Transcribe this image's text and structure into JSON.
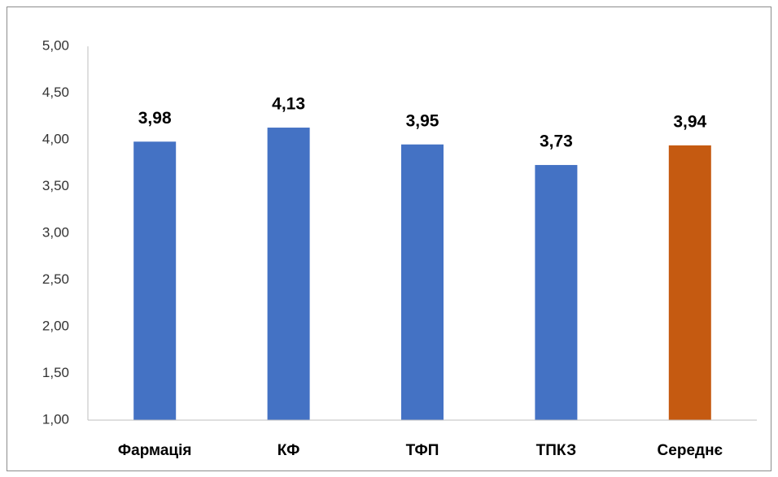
{
  "chart_data": {
    "type": "bar",
    "categories": [
      "Фармація",
      "КФ",
      "ТФП",
      "ТПКЗ",
      "Середнє"
    ],
    "values": [
      3.98,
      4.13,
      3.95,
      3.73,
      3.94
    ],
    "value_labels": [
      "3,98",
      "4,13",
      "3,95",
      "3,73",
      "3,94"
    ],
    "colors": [
      "#4472c4",
      "#4472c4",
      "#4472c4",
      "#4472c4",
      "#c55a11"
    ],
    "ylim": [
      1,
      5
    ],
    "yticks": [
      {
        "value": 1,
        "label": "1,00"
      },
      {
        "value": 1.5,
        "label": "1,50"
      },
      {
        "value": 2,
        "label": "2,00"
      },
      {
        "value": 2.5,
        "label": "2,50"
      },
      {
        "value": 3,
        "label": "3,00"
      },
      {
        "value": 3.5,
        "label": "3,50"
      },
      {
        "value": 4,
        "label": "4,00"
      },
      {
        "value": 4.5,
        "label": "4,50"
      },
      {
        "value": 5,
        "label": "5,00"
      }
    ],
    "grid": false
  }
}
